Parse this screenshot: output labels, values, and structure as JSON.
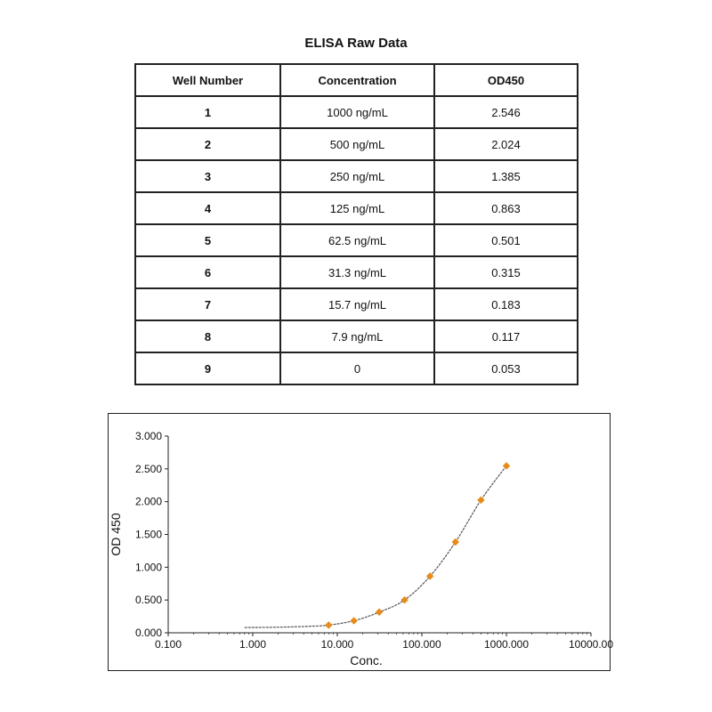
{
  "page_title": "ELISA Raw Data",
  "table": {
    "headers": [
      "Well Number",
      "Concentration",
      "OD450"
    ],
    "rows": [
      [
        "1",
        "1000 ng/mL",
        "2.546"
      ],
      [
        "2",
        "500 ng/mL",
        "2.024"
      ],
      [
        "3",
        "250 ng/mL",
        "1.385"
      ],
      [
        "4",
        "125 ng/mL",
        "0.863"
      ],
      [
        "5",
        "62.5 ng/mL",
        "0.501"
      ],
      [
        "6",
        "31.3 ng/mL",
        "0.315"
      ],
      [
        "7",
        "15.7 ng/mL",
        "0.183"
      ],
      [
        "8",
        "7.9 ng/mL",
        "0.117"
      ],
      [
        "9",
        "0",
        "0.053"
      ]
    ]
  },
  "chart_data": {
    "type": "scatter",
    "xlabel": "Conc.",
    "ylabel": "OD 450",
    "xscale": "log",
    "xlim": [
      0.1,
      10000
    ],
    "ylim": [
      0,
      3
    ],
    "x_tick_labels": [
      "0.100",
      "1.000",
      "10.000",
      "100.000",
      "1000.000",
      "10000.00"
    ],
    "y_tick_labels": [
      "0.000",
      "0.500",
      "1.000",
      "1.500",
      "2.000",
      "2.500",
      "3.000"
    ],
    "grid": false,
    "marker_color": "#e88a1a",
    "curve_color": "#555555",
    "points": {
      "x": [
        1000,
        500,
        250,
        125,
        62.5,
        31.3,
        15.7,
        7.9
      ],
      "y": [
        2.546,
        2.024,
        1.385,
        0.863,
        0.501,
        0.315,
        0.183,
        0.117
      ]
    },
    "fit_curve": {
      "x": [
        0.8,
        2,
        5,
        7.9,
        15.7,
        31.3,
        62.5,
        125,
        250,
        500,
        1000
      ],
      "y": [
        0.08,
        0.085,
        0.1,
        0.117,
        0.183,
        0.315,
        0.501,
        0.863,
        1.385,
        2.024,
        2.546
      ]
    }
  }
}
